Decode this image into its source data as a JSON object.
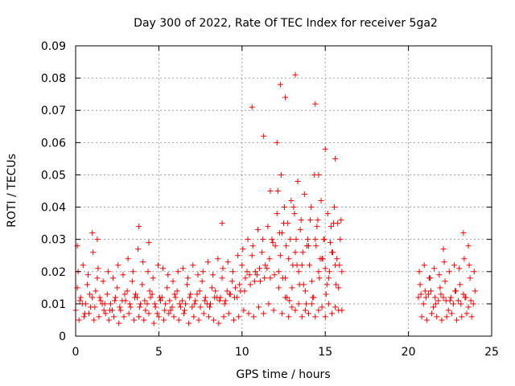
{
  "chart_data": {
    "type": "scatter",
    "title": "Day 300 of 2022, Rate Of TEC Index for receiver 5ga2",
    "xlabel": "GPS time / hours",
    "ylabel": "ROTI / TECUs",
    "xlim": [
      0,
      25
    ],
    "ylim": [
      0,
      0.09
    ],
    "xticks": [
      "0",
      "5",
      "10",
      "15",
      "20",
      "25"
    ],
    "yticks": [
      "0",
      "0.01",
      "0.02",
      "0.03",
      "0.04",
      "0.05",
      "0.06",
      "0.07",
      "0.08",
      "0.09"
    ],
    "grid": true,
    "marker": "+",
    "color": "#ff0000",
    "series": [
      {
        "x": [
          0.0,
          0.3,
          0.6,
          0.9,
          1.2,
          1.5,
          1.8,
          2.1,
          2.4,
          2.7,
          3.0,
          3.3,
          3.6,
          3.9,
          4.2,
          4.5,
          4.8,
          5.1,
          5.4,
          5.7,
          6.0,
          6.3,
          6.6,
          6.9,
          7.2,
          7.5,
          7.8,
          8.1,
          8.4,
          8.7,
          9.0,
          9.3,
          9.6,
          9.9,
          10.2,
          10.5,
          10.8,
          11.1,
          11.4,
          11.7,
          12.0,
          12.2,
          12.4,
          12.6,
          12.8,
          13.0,
          13.2,
          13.4,
          13.6,
          13.8,
          14.0,
          14.2,
          14.4,
          14.6,
          14.8,
          15.0,
          15.2,
          15.4,
          15.6,
          15.8,
          16.0,
          20.6,
          20.9,
          21.2,
          21.5,
          21.8,
          22.1,
          22.4,
          22.7,
          23.0,
          23.3,
          23.6,
          23.9,
          0.1,
          0.4,
          0.7,
          1.0,
          1.3,
          1.6,
          1.9,
          2.2,
          2.5,
          2.8,
          3.1,
          3.4,
          3.7,
          4.0,
          4.3,
          4.6,
          4.9,
          5.2,
          5.5,
          5.8,
          6.1,
          6.4,
          6.7,
          7.0,
          7.3,
          7.6,
          7.9,
          8.2,
          8.5,
          8.8,
          9.1,
          9.4,
          9.7,
          10.0,
          10.3,
          10.6,
          10.9,
          11.2,
          11.5,
          11.8,
          12.1,
          12.3,
          12.5,
          12.7,
          12.9,
          13.1,
          13.3,
          13.5,
          13.7,
          13.9,
          14.1,
          14.3,
          14.5,
          14.7,
          14.9,
          15.1,
          15.3,
          15.5,
          15.7,
          15.9,
          20.7,
          21.0,
          21.3,
          21.6,
          21.9,
          22.2,
          22.5,
          22.8,
          23.1,
          23.4,
          23.7,
          24.0,
          0.2,
          0.5,
          0.8,
          1.1,
          1.4,
          1.7,
          2.0,
          2.3,
          2.6,
          2.9,
          3.2,
          3.5,
          3.8,
          4.1,
          4.4,
          4.7,
          5.0,
          5.3,
          5.6,
          5.9,
          6.2,
          6.5,
          6.8,
          7.1,
          7.4,
          7.7,
          8.0,
          8.3,
          8.6,
          8.9,
          9.2,
          9.5,
          9.8,
          10.1,
          10.4,
          10.7,
          11.0,
          11.3,
          11.6,
          11.9,
          12.2,
          12.4,
          12.6,
          12.8,
          13.0,
          13.2,
          13.4,
          13.6,
          13.8,
          14.0,
          14.2,
          14.4,
          14.6,
          14.8,
          15.0,
          15.2,
          15.4,
          15.6,
          15.8,
          16.0,
          20.8,
          21.1,
          21.4,
          21.7,
          22.0,
          22.3,
          22.6,
          22.9,
          23.2,
          23.5,
          23.8,
          0.15,
          0.45,
          0.75,
          1.05,
          1.35,
          1.65,
          1.95,
          2.25,
          2.55,
          2.85,
          3.15,
          3.45,
          3.75,
          4.05,
          4.35,
          4.65,
          4.95,
          5.25,
          5.55,
          5.85,
          6.15,
          6.45,
          6.75,
          7.05,
          7.35,
          7.65,
          7.95,
          8.25,
          8.55,
          8.85,
          9.15,
          9.45,
          9.75,
          10.05,
          10.35,
          10.65,
          10.95,
          11.25,
          11.55,
          11.85,
          12.15,
          12.35,
          12.55,
          12.75,
          12.95,
          13.15,
          13.35,
          13.55,
          13.75,
          13.95,
          14.15,
          14.35,
          14.55,
          14.75,
          14.95,
          15.15,
          15.35,
          15.55,
          15.75,
          15.95,
          20.65,
          20.95,
          21.25,
          21.55,
          21.85,
          22.15,
          22.45,
          22.75,
          23.05,
          23.35,
          23.65,
          23.95,
          0.25,
          0.55,
          0.85,
          1.15,
          1.45,
          1.75,
          2.05,
          2.35,
          2.65,
          2.95,
          3.25,
          3.55,
          3.85,
          4.15,
          4.45,
          4.75,
          5.05,
          5.35,
          5.65,
          5.95,
          6.25,
          6.55,
          6.85,
          7.15,
          7.45,
          7.75,
          8.05,
          8.35,
          8.65,
          8.95,
          9.25,
          9.55,
          9.85,
          10.15,
          10.45,
          10.75,
          11.05,
          11.35,
          11.65,
          11.95,
          12.25,
          12.45,
          12.65,
          12.85,
          13.05,
          13.25,
          13.45,
          13.65,
          13.85,
          14.05,
          14.25,
          14.45,
          14.65,
          14.85,
          15.05,
          15.25,
          15.45,
          15.65,
          15.85,
          20.75,
          21.05,
          21.35,
          21.65,
          21.95,
          22.25,
          22.55,
          22.85,
          23.15,
          23.45,
          23.75,
          0.1,
          1.0,
          1.3,
          3.8,
          4.4,
          8.8,
          10.6,
          11.3,
          11.7,
          12.1,
          12.3,
          12.6,
          13.2,
          14.4,
          14.6,
          15.0,
          15.6,
          23.3,
          23.6,
          22.1
        ],
        "y": [
          0.008,
          0.012,
          0.01,
          0.009,
          0.014,
          0.011,
          0.007,
          0.01,
          0.012,
          0.008,
          0.011,
          0.009,
          0.013,
          0.01,
          0.008,
          0.012,
          0.009,
          0.011,
          0.01,
          0.008,
          0.012,
          0.009,
          0.01,
          0.013,
          0.011,
          0.009,
          0.012,
          0.01,
          0.014,
          0.012,
          0.011,
          0.013,
          0.015,
          0.014,
          0.018,
          0.016,
          0.02,
          0.017,
          0.022,
          0.018,
          0.028,
          0.02,
          0.032,
          0.018,
          0.024,
          0.015,
          0.026,
          0.02,
          0.022,
          0.014,
          0.028,
          0.017,
          0.03,
          0.02,
          0.024,
          0.021,
          0.018,
          0.026,
          0.022,
          0.015,
          0.02,
          0.012,
          0.01,
          0.013,
          0.009,
          0.011,
          0.012,
          0.008,
          0.01,
          0.011,
          0.013,
          0.009,
          0.01,
          0.015,
          0.01,
          0.016,
          0.012,
          0.018,
          0.01,
          0.013,
          0.008,
          0.015,
          0.011,
          0.014,
          0.017,
          0.012,
          0.016,
          0.01,
          0.013,
          0.007,
          0.012,
          0.015,
          0.009,
          0.014,
          0.011,
          0.016,
          0.009,
          0.013,
          0.017,
          0.01,
          0.015,
          0.012,
          0.018,
          0.014,
          0.017,
          0.012,
          0.022,
          0.02,
          0.025,
          0.019,
          0.026,
          0.021,
          0.03,
          0.038,
          0.025,
          0.035,
          0.012,
          0.03,
          0.04,
          0.022,
          0.033,
          0.016,
          0.028,
          0.036,
          0.012,
          0.034,
          0.024,
          0.03,
          0.016,
          0.029,
          0.035,
          0.024,
          0.03,
          0.016,
          0.014,
          0.018,
          0.012,
          0.015,
          0.017,
          0.011,
          0.014,
          0.016,
          0.012,
          0.018,
          0.014,
          0.005,
          0.006,
          0.007,
          0.005,
          0.006,
          0.008,
          0.005,
          0.006,
          0.004,
          0.006,
          0.007,
          0.005,
          0.006,
          0.005,
          0.007,
          0.004,
          0.006,
          0.005,
          0.007,
          0.006,
          0.005,
          0.007,
          0.004,
          0.006,
          0.005,
          0.007,
          0.006,
          0.005,
          0.004,
          0.006,
          0.007,
          0.005,
          0.006,
          0.008,
          0.007,
          0.006,
          0.009,
          0.007,
          0.01,
          0.008,
          0.015,
          0.007,
          0.012,
          0.006,
          0.009,
          0.008,
          0.01,
          0.006,
          0.008,
          0.007,
          0.01,
          0.006,
          0.008,
          0.009,
          0.006,
          0.01,
          0.007,
          0.009,
          0.008,
          0.008,
          0.006,
          0.005,
          0.007,
          0.006,
          0.005,
          0.006,
          0.007,
          0.005,
          0.006,
          0.007,
          0.006,
          0.02,
          0.022,
          0.019,
          0.026,
          0.021,
          0.017,
          0.02,
          0.018,
          0.022,
          0.019,
          0.024,
          0.02,
          0.027,
          0.023,
          0.02,
          0.018,
          0.022,
          0.021,
          0.019,
          0.017,
          0.02,
          0.021,
          0.018,
          0.022,
          0.019,
          0.02,
          0.023,
          0.019,
          0.024,
          0.021,
          0.023,
          0.02,
          0.025,
          0.027,
          0.03,
          0.028,
          0.033,
          0.03,
          0.034,
          0.029,
          0.045,
          0.05,
          0.04,
          0.035,
          0.042,
          0.038,
          0.048,
          0.036,
          0.044,
          0.03,
          0.04,
          0.05,
          0.036,
          0.042,
          0.03,
          0.038,
          0.034,
          0.04,
          0.035,
          0.036,
          0.02,
          0.022,
          0.018,
          0.021,
          0.019,
          0.023,
          0.02,
          0.022,
          0.021,
          0.024,
          0.022,
          0.02,
          0.011,
          0.007,
          0.013,
          0.009,
          0.012,
          0.01,
          0.008,
          0.011,
          0.009,
          0.013,
          0.01,
          0.012,
          0.009,
          0.011,
          0.014,
          0.01,
          0.012,
          0.008,
          0.011,
          0.013,
          0.01,
          0.008,
          0.012,
          0.01,
          0.014,
          0.011,
          0.009,
          0.012,
          0.011,
          0.01,
          0.013,
          0.012,
          0.016,
          0.014,
          0.019,
          0.017,
          0.021,
          0.018,
          0.024,
          0.019,
          0.032,
          0.018,
          0.028,
          0.011,
          0.022,
          0.03,
          0.016,
          0.026,
          0.01,
          0.022,
          0.012,
          0.028,
          0.018,
          0.024,
          0.013,
          0.02,
          0.026,
          0.016,
          0.022,
          0.013,
          0.012,
          0.014,
          0.01,
          0.013,
          0.011,
          0.012,
          0.014,
          0.01,
          0.012,
          0.011,
          0.028,
          0.032,
          0.03,
          0.034,
          0.029,
          0.035,
          0.071,
          0.062,
          0.045,
          0.06,
          0.078,
          0.074,
          0.081,
          0.072,
          0.05,
          0.058,
          0.055,
          0.032,
          0.028,
          0.027
        ]
      }
    ]
  }
}
